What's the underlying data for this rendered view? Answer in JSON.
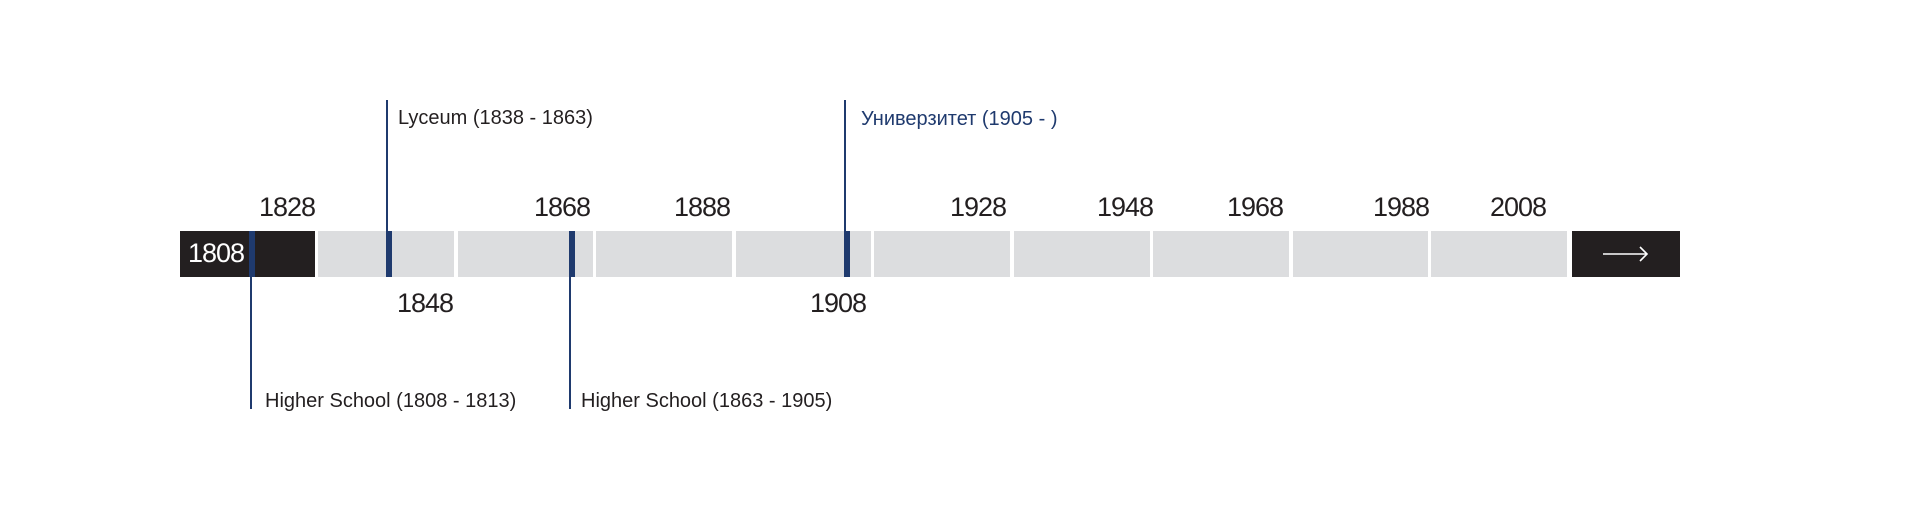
{
  "timeline": {
    "start_year": "1808",
    "ticks_above": [
      "1828",
      "1868",
      "1888",
      "1928",
      "1948",
      "1968",
      "1988",
      "2008"
    ],
    "ticks_below": [
      "1848",
      "1908"
    ],
    "events": [
      {
        "label": "Higher School (1808 - 1813)"
      },
      {
        "label": "Lyceum (1838 - 1863)"
      },
      {
        "label": "Higher School (1863 - 1905)"
      },
      {
        "label": "Универзитет (1905 - )",
        "current": true
      }
    ],
    "next_icon": "arrow-right-icon",
    "colors": {
      "accent": "#1f3a6e",
      "dark": "#231f20",
      "segment": "#dcdddf"
    }
  }
}
